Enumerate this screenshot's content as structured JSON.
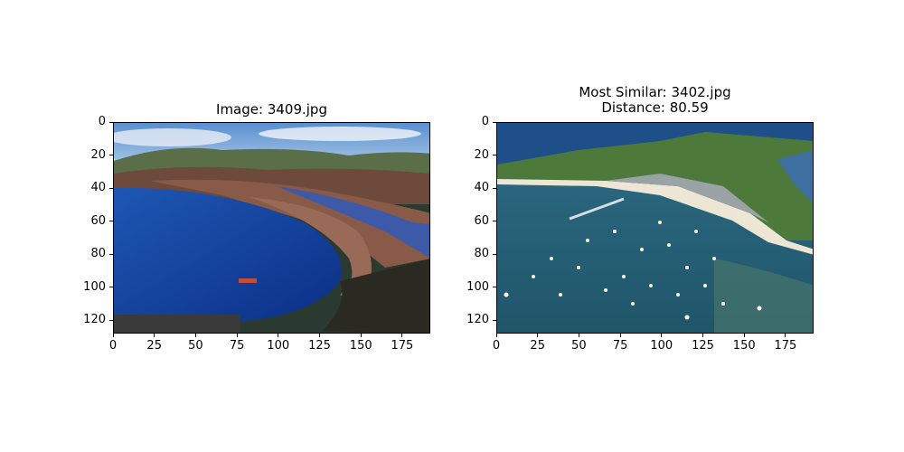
{
  "figure": {
    "left_panel": {
      "title": "Image: 3409.jpg",
      "image_subject": "coastal-bay-town",
      "x_range": [
        0,
        192
      ],
      "y_range": [
        0,
        128
      ],
      "x_ticks": [
        0,
        25,
        50,
        75,
        100,
        125,
        150,
        175
      ],
      "y_ticks": [
        0,
        20,
        40,
        60,
        80,
        100,
        120
      ]
    },
    "right_panel": {
      "title_line1": "Most Similar: 3402.jpg",
      "title_line2": "Distance: 80.59",
      "image_subject": "aerial-harbor-with-boats",
      "x_range": [
        0,
        192
      ],
      "y_range": [
        0,
        128
      ],
      "x_ticks": [
        0,
        25,
        50,
        75,
        100,
        125,
        150,
        175
      ],
      "y_ticks": [
        0,
        20,
        40,
        60,
        80,
        100,
        120
      ]
    }
  }
}
